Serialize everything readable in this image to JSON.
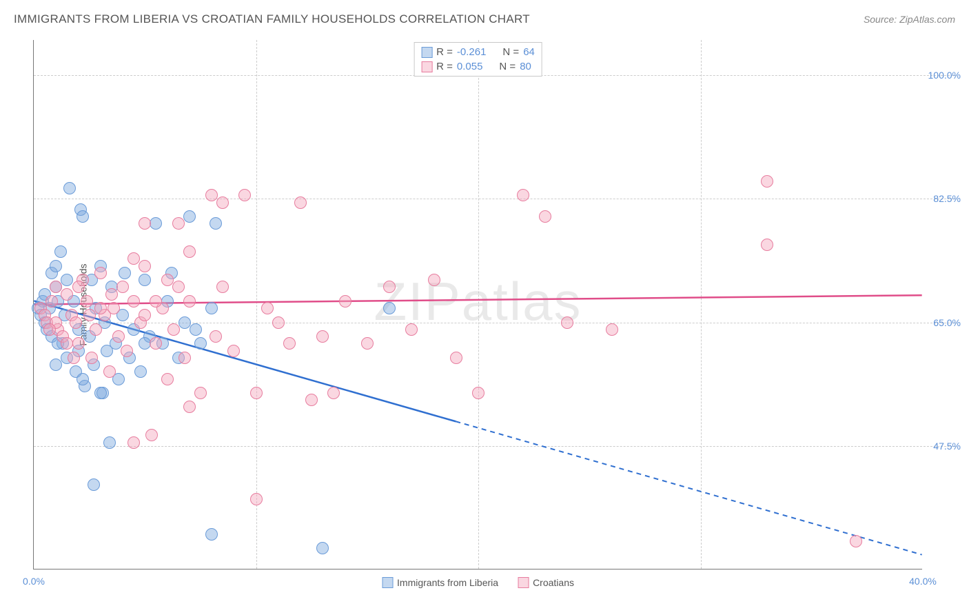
{
  "title": "IMMIGRANTS FROM LIBERIA VS CROATIAN FAMILY HOUSEHOLDS CORRELATION CHART",
  "source": "Source: ZipAtlas.com",
  "ylabel": "Family Households",
  "watermark": "ZIPatlas",
  "chart": {
    "type": "scatter-with-regression",
    "xlim": [
      0,
      40
    ],
    "ylim": [
      30,
      105
    ],
    "y_ticks": [
      47.5,
      65.0,
      82.5,
      100.0
    ],
    "y_tick_labels": [
      "47.5%",
      "65.0%",
      "82.5%",
      "100.0%"
    ],
    "x_tick_left": {
      "value": 0,
      "label": "0.0%"
    },
    "x_tick_right": {
      "value": 40,
      "label": "40.0%"
    },
    "x_grid": [
      10,
      20,
      30
    ],
    "background_color": "#ffffff",
    "grid_color": "#cccccc",
    "axis_color": "#777777",
    "point_radius": 9,
    "series": [
      {
        "name": "Immigrants from Liberia",
        "fill": "rgba(124,169,222,0.45)",
        "stroke": "#6a9bd8",
        "line_color": "#2f6fd0",
        "R": "-0.261",
        "N": "64",
        "regression": {
          "x1": 0,
          "y1": 68,
          "x2": 40,
          "y2": 32,
          "solid_until_x": 19
        },
        "points": [
          [
            0.2,
            67
          ],
          [
            0.3,
            66
          ],
          [
            0.4,
            68
          ],
          [
            0.5,
            65
          ],
          [
            0.6,
            64
          ],
          [
            0.5,
            69
          ],
          [
            0.7,
            67
          ],
          [
            0.8,
            72
          ],
          [
            0.8,
            63
          ],
          [
            1.0,
            70
          ],
          [
            1.1,
            68
          ],
          [
            1.2,
            75
          ],
          [
            1.3,
            62
          ],
          [
            1.4,
            66
          ],
          [
            1.5,
            71
          ],
          [
            1.5,
            60
          ],
          [
            1.6,
            84
          ],
          [
            1.8,
            68
          ],
          [
            1.9,
            58
          ],
          [
            2.0,
            64
          ],
          [
            2.1,
            81
          ],
          [
            2.2,
            80
          ],
          [
            2.3,
            56
          ],
          [
            2.5,
            63
          ],
          [
            2.6,
            71
          ],
          [
            2.7,
            59
          ],
          [
            2.7,
            42
          ],
          [
            2.8,
            67
          ],
          [
            3.0,
            73
          ],
          [
            3.1,
            55
          ],
          [
            3.2,
            65
          ],
          [
            3.3,
            61
          ],
          [
            3.4,
            48
          ],
          [
            3.5,
            70
          ],
          [
            3.7,
            62
          ],
          [
            3.8,
            57
          ],
          [
            4.0,
            66
          ],
          [
            4.1,
            72
          ],
          [
            4.3,
            60
          ],
          [
            4.5,
            64
          ],
          [
            4.8,
            58
          ],
          [
            5.0,
            71
          ],
          [
            5.2,
            63
          ],
          [
            5.5,
            79
          ],
          [
            5.8,
            62
          ],
          [
            6.0,
            68
          ],
          [
            6.2,
            72
          ],
          [
            6.5,
            60
          ],
          [
            6.8,
            65
          ],
          [
            7.0,
            80
          ],
          [
            7.5,
            62
          ],
          [
            8.0,
            67
          ],
          [
            8.0,
            35
          ],
          [
            8.2,
            79
          ],
          [
            7.3,
            64
          ],
          [
            5.0,
            62
          ],
          [
            1.0,
            73
          ],
          [
            1.1,
            62
          ],
          [
            1.0,
            59
          ],
          [
            3.0,
            55
          ],
          [
            2.2,
            57
          ],
          [
            13,
            33
          ],
          [
            16,
            67
          ],
          [
            2.0,
            61
          ]
        ]
      },
      {
        "name": "Croatians",
        "fill": "rgba(244,166,188,0.45)",
        "stroke": "#e77c9e",
        "line_color": "#e04d89",
        "R": "0.055",
        "N": "80",
        "regression": {
          "x1": 0,
          "y1": 67.5,
          "x2": 40,
          "y2": 68.8,
          "solid_until_x": 40
        },
        "points": [
          [
            0.3,
            67
          ],
          [
            0.5,
            66
          ],
          [
            0.6,
            65
          ],
          [
            0.8,
            68
          ],
          [
            1.0,
            70
          ],
          [
            1.1,
            64
          ],
          [
            1.3,
            63
          ],
          [
            1.5,
            69
          ],
          [
            1.7,
            66
          ],
          [
            1.9,
            65
          ],
          [
            2.0,
            62
          ],
          [
            2.2,
            71
          ],
          [
            2.4,
            68
          ],
          [
            2.6,
            60
          ],
          [
            2.8,
            64
          ],
          [
            3.0,
            72
          ],
          [
            3.2,
            66
          ],
          [
            3.4,
            58
          ],
          [
            3.6,
            67
          ],
          [
            3.8,
            63
          ],
          [
            4.0,
            70
          ],
          [
            4.2,
            61
          ],
          [
            4.5,
            68
          ],
          [
            4.8,
            65
          ],
          [
            5.0,
            73
          ],
          [
            5.0,
            79
          ],
          [
            5.3,
            49
          ],
          [
            5.5,
            62
          ],
          [
            5.8,
            67
          ],
          [
            6.0,
            71
          ],
          [
            6.3,
            64
          ],
          [
            6.5,
            79
          ],
          [
            6.8,
            60
          ],
          [
            7.0,
            68
          ],
          [
            7.5,
            55
          ],
          [
            8.0,
            83
          ],
          [
            8.2,
            63
          ],
          [
            8.5,
            70
          ],
          [
            9.0,
            61
          ],
          [
            9.5,
            83
          ],
          [
            10,
            40
          ],
          [
            10,
            55
          ],
          [
            10.5,
            67
          ],
          [
            11,
            65
          ],
          [
            11.5,
            62
          ],
          [
            12,
            82
          ],
          [
            12.5,
            54
          ],
          [
            13,
            63
          ],
          [
            13.5,
            55
          ],
          [
            14,
            68
          ],
          [
            15,
            62
          ],
          [
            16,
            70
          ],
          [
            17,
            64
          ],
          [
            18,
            71
          ],
          [
            19,
            60
          ],
          [
            20,
            55
          ],
          [
            22,
            83
          ],
          [
            23,
            80
          ],
          [
            24,
            65
          ],
          [
            26,
            64
          ],
          [
            33,
            85
          ],
          [
            33,
            76
          ],
          [
            37,
            34
          ],
          [
            7,
            75
          ],
          [
            6.5,
            70
          ],
          [
            4.5,
            74
          ],
          [
            8.5,
            82
          ],
          [
            3.0,
            67
          ],
          [
            2.0,
            70
          ],
          [
            1.0,
            65
          ],
          [
            1.5,
            62
          ],
          [
            0.7,
            64
          ],
          [
            1.8,
            60
          ],
          [
            2.5,
            66
          ],
          [
            3.5,
            69
          ],
          [
            4.5,
            48
          ],
          [
            5.0,
            66
          ],
          [
            6.0,
            57
          ],
          [
            7.0,
            53
          ],
          [
            5.5,
            68
          ]
        ]
      }
    ]
  },
  "colors": {
    "tick_label": "#5b8fd6",
    "title": "#555555",
    "source": "#888888"
  }
}
